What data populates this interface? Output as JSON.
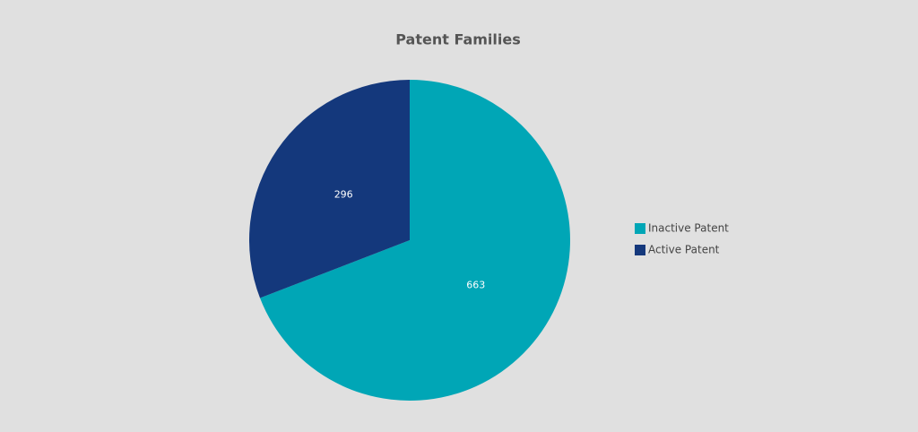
{
  "chart_data": {
    "type": "pie",
    "title": "Patent Families",
    "categories": [
      "Inactive Patent",
      "Active Patent"
    ],
    "values": [
      663,
      296
    ],
    "colors": [
      "#00a6b6",
      "#14387c"
    ],
    "legend": "right"
  }
}
